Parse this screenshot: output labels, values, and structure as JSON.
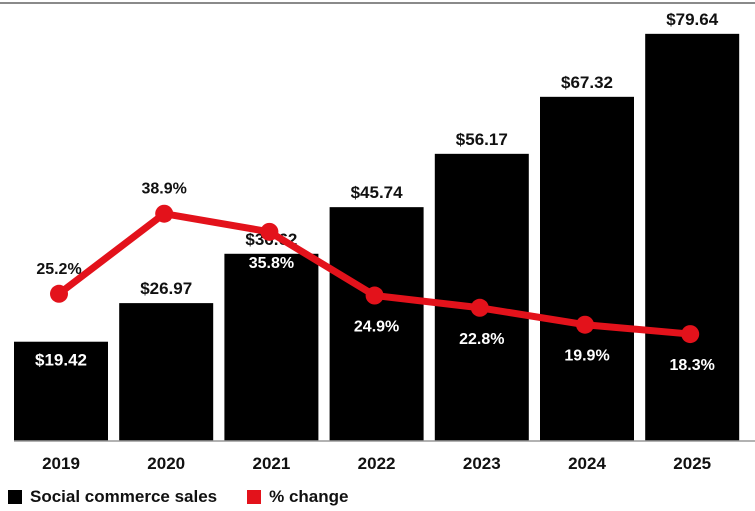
{
  "chart_data": {
    "type": "bar",
    "categories": [
      "2019",
      "2020",
      "2021",
      "2022",
      "2023",
      "2024",
      "2025"
    ],
    "series": [
      {
        "name": "Social commerce sales",
        "kind": "bar",
        "color": "#000000",
        "values": [
          19.42,
          26.97,
          36.62,
          45.74,
          56.17,
          67.32,
          79.64
        ],
        "labels": [
          "$19.42",
          "$26.97",
          "$36.62",
          "$45.74",
          "$56.17",
          "$67.32",
          "$79.64"
        ]
      },
      {
        "name": "% change",
        "kind": "line",
        "color": "#e3121b",
        "values": [
          25.2,
          38.9,
          35.8,
          24.9,
          22.8,
          19.9,
          18.3
        ],
        "labels": [
          "25.2%",
          "38.9%",
          "35.8%",
          "24.9%",
          "22.8%",
          "19.9%",
          "18.3%"
        ]
      }
    ],
    "ylim": [
      0,
      80
    ],
    "ylim_secondary": [
      0,
      70
    ],
    "grid": false,
    "legend_position": "bottom-left"
  },
  "legend": {
    "items": [
      {
        "label": "Social commerce sales",
        "color": "#000000"
      },
      {
        "label": "% change",
        "color": "#e3121b"
      }
    ]
  }
}
